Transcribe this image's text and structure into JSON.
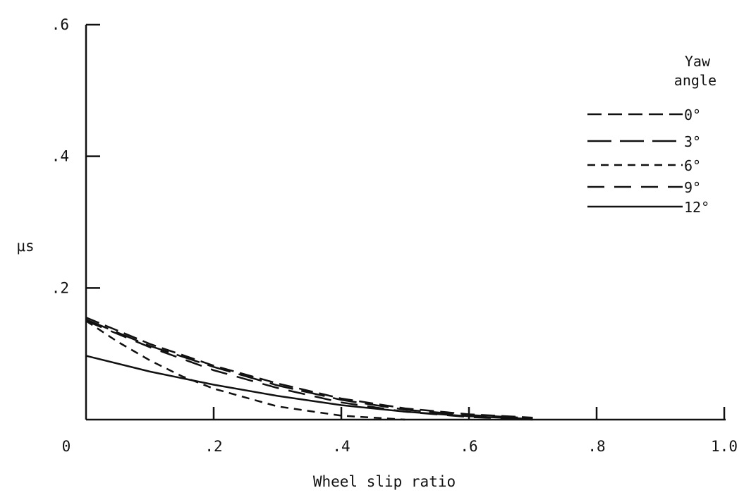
{
  "chart_data": {
    "type": "line",
    "xlabel": "Wheel slip ratio",
    "ylabel": "μs",
    "xlim": [
      0,
      1.0
    ],
    "ylim": [
      0,
      0.6
    ],
    "x_ticks": [
      0,
      0.2,
      0.4,
      0.6,
      0.8,
      1.0
    ],
    "x_tick_labels": [
      "0",
      ".2",
      ".4",
      ".6",
      ".8",
      "1.0"
    ],
    "y_ticks": [
      0.2,
      0.4,
      0.6
    ],
    "y_tick_labels": [
      ".2",
      ".4",
      ".6"
    ],
    "grid": false,
    "legend": {
      "title": "Yaw angle",
      "position": "top-right"
    },
    "series": [
      {
        "name": "0°",
        "dash": "long-dash",
        "points": [
          [
            0,
            0.155
          ],
          [
            0.1,
            0.115
          ],
          [
            0.2,
            0.082
          ],
          [
            0.3,
            0.055
          ],
          [
            0.4,
            0.032
          ],
          [
            0.5,
            0.017
          ],
          [
            0.6,
            0.008
          ],
          [
            0.7,
            0.003
          ]
        ]
      },
      {
        "name": "3°",
        "dash": "very-long-dash",
        "points": [
          [
            0,
            0.152
          ],
          [
            0.1,
            0.112
          ],
          [
            0.2,
            0.08
          ],
          [
            0.3,
            0.052
          ],
          [
            0.4,
            0.03
          ],
          [
            0.5,
            0.015
          ],
          [
            0.6,
            0.007
          ],
          [
            0.7,
            0.002
          ]
        ]
      },
      {
        "name": "6°",
        "dash": "short-dash",
        "points": [
          [
            0,
            0.15
          ],
          [
            0.05,
            0.118
          ],
          [
            0.1,
            0.09
          ],
          [
            0.15,
            0.066
          ],
          [
            0.2,
            0.047
          ],
          [
            0.3,
            0.02
          ],
          [
            0.4,
            0.006
          ],
          [
            0.5,
            0.0
          ]
        ]
      },
      {
        "name": "9°",
        "dash": "medium-dash",
        "points": [
          [
            0,
            0.15
          ],
          [
            0.1,
            0.11
          ],
          [
            0.2,
            0.075
          ],
          [
            0.3,
            0.048
          ],
          [
            0.4,
            0.026
          ],
          [
            0.5,
            0.012
          ],
          [
            0.6,
            0.004
          ],
          [
            0.7,
            0.0
          ]
        ]
      },
      {
        "name": "12°",
        "dash": "solid",
        "points": [
          [
            0,
            0.097
          ],
          [
            0.1,
            0.073
          ],
          [
            0.2,
            0.053
          ],
          [
            0.3,
            0.036
          ],
          [
            0.4,
            0.022
          ],
          [
            0.5,
            0.012
          ],
          [
            0.6,
            0.005
          ],
          [
            0.7,
            0.001
          ]
        ]
      }
    ]
  }
}
